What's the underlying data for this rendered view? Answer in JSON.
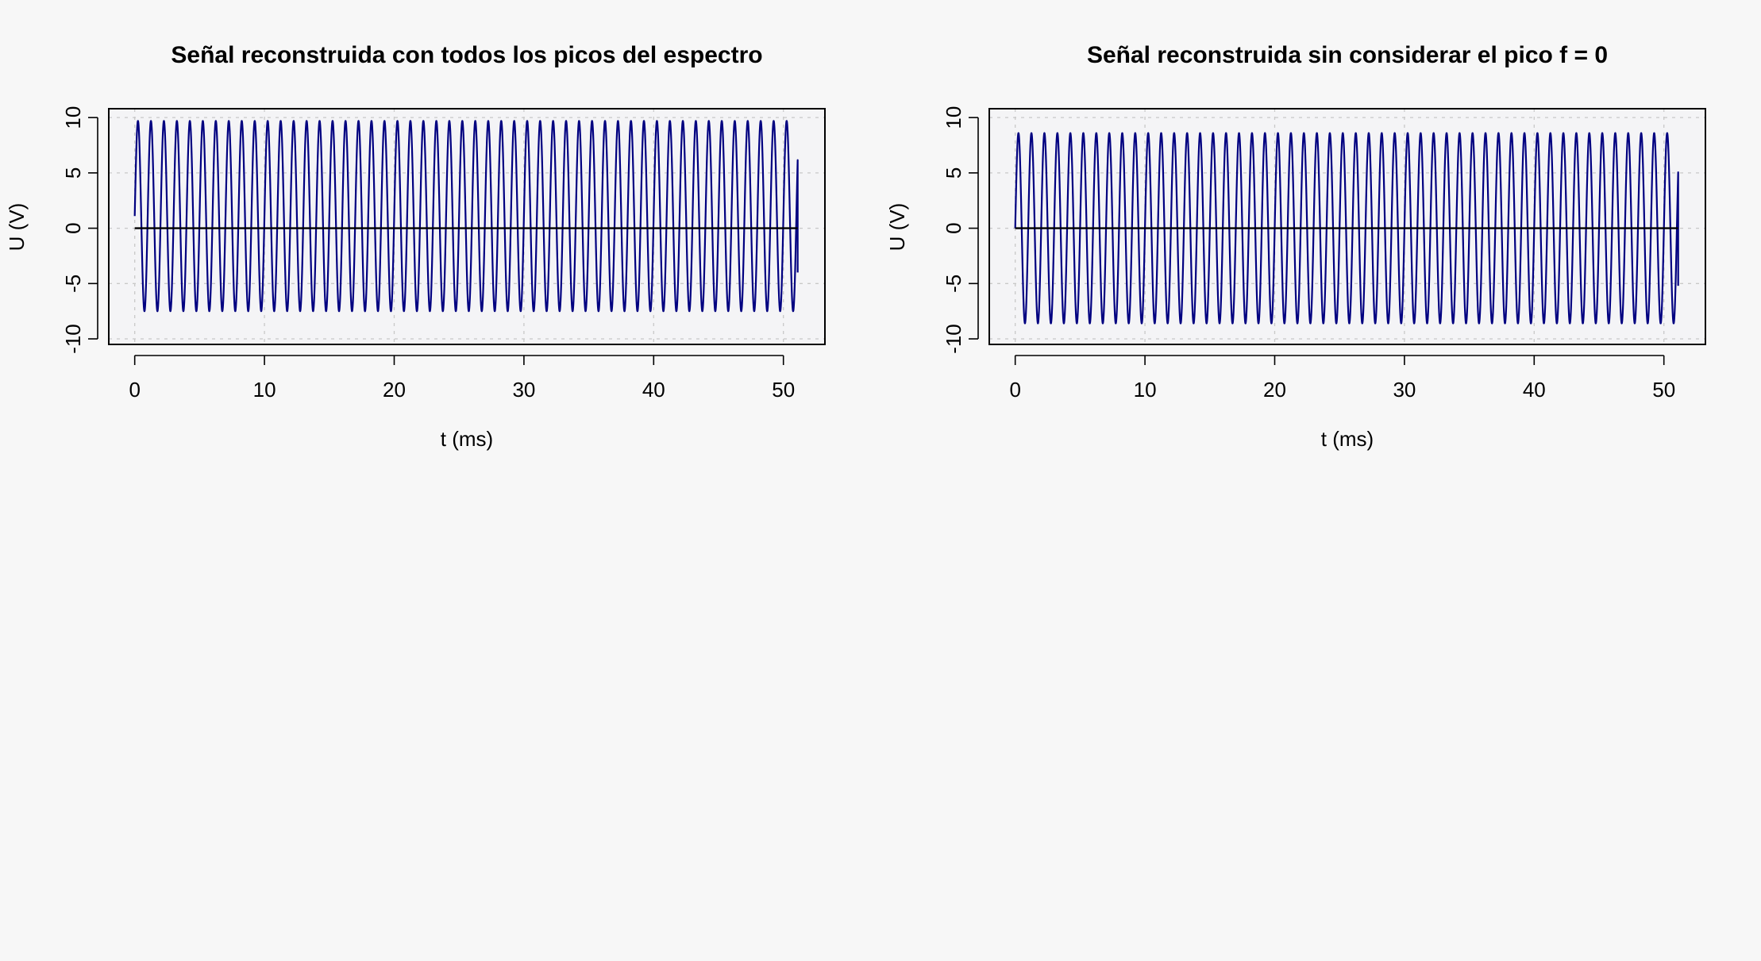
{
  "colors": {
    "background": "#f7f7f7",
    "plot_background": "#f4f4f6",
    "signal": "#000080",
    "zero_line": "#000000",
    "grid": "#c8c8c8",
    "axes": "#000000"
  },
  "chart_data": [
    {
      "type": "line",
      "title": "Señal reconstruida con todos los picos del espectro",
      "xlabel": "t (ms)",
      "ylabel": "U (V)",
      "xlim": [
        -2,
        53.2
      ],
      "ylim": [
        -10.5,
        10.8
      ],
      "xticks": [
        0,
        10,
        20,
        30,
        40,
        50
      ],
      "xtick_labels": [
        "0",
        "10",
        "20",
        "30",
        "40",
        "50"
      ],
      "yticks": [
        -10,
        -5,
        0,
        5,
        10
      ],
      "ytick_labels": [
        "-10",
        "-5",
        "0",
        "5",
        "10"
      ],
      "grid": true,
      "series": [
        {
          "kind": "sinusoid",
          "t_start": 0,
          "t_end": 51.1,
          "offset": 1.1,
          "amplitude": 8.6,
          "period": 1.0,
          "phase_deg": 0,
          "end_value": -4.0,
          "color": "#000080"
        },
        {
          "kind": "hline",
          "t_start": 0,
          "t_end": 51.1,
          "value": 0,
          "color": "#000000"
        }
      ]
    },
    {
      "type": "line",
      "title": "Señal reconstruida sin considerar el pico f = 0",
      "xlabel": "t (ms)",
      "ylabel": "U (V)",
      "xlim": [
        -2,
        53.2
      ],
      "ylim": [
        -10.5,
        10.8
      ],
      "xticks": [
        0,
        10,
        20,
        30,
        40,
        50
      ],
      "xtick_labels": [
        "0",
        "10",
        "20",
        "30",
        "40",
        "50"
      ],
      "yticks": [
        -10,
        -5,
        0,
        5,
        10
      ],
      "ytick_labels": [
        "-10",
        "-5",
        "0",
        "5",
        "10"
      ],
      "grid": true,
      "series": [
        {
          "kind": "sinusoid",
          "t_start": 0,
          "t_end": 51.1,
          "offset": 0,
          "amplitude": 8.6,
          "period": 1.0,
          "phase_deg": 0,
          "end_value": -5.2,
          "color": "#000080"
        },
        {
          "kind": "hline",
          "t_start": 0,
          "t_end": 51.1,
          "value": 0,
          "color": "#000000"
        }
      ]
    }
  ]
}
